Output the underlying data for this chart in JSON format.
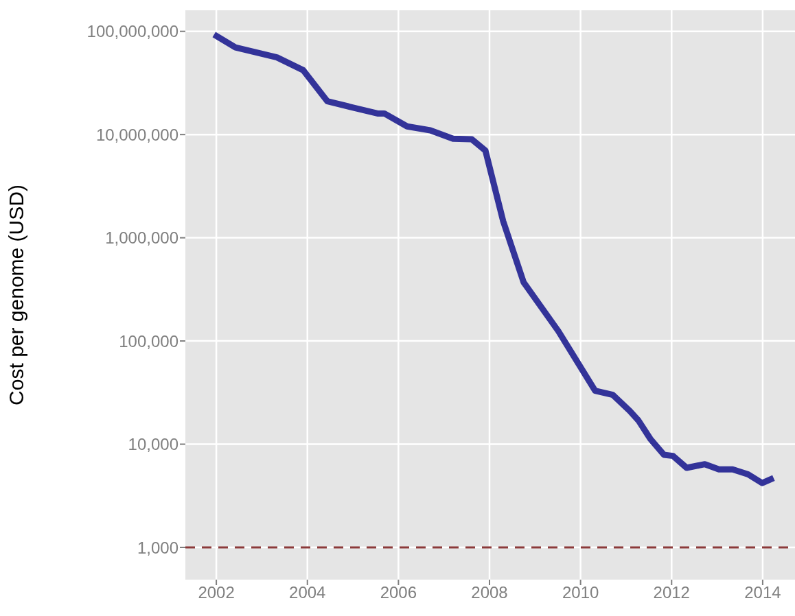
{
  "chart_data": {
    "type": "line",
    "ylabel": "Cost per genome (USD)",
    "x": [
      2001.95,
      2002.42,
      2003.33,
      2003.91,
      2004.44,
      2005.54,
      2005.69,
      2006.19,
      2006.7,
      2007.2,
      2007.61,
      2007.91,
      2008.3,
      2008.75,
      2009.51,
      2010.32,
      2010.71,
      2011.08,
      2011.27,
      2011.53,
      2011.83,
      2012.03,
      2012.33,
      2012.73,
      2013.04,
      2013.34,
      2013.68,
      2013.99,
      2014.24
    ],
    "series": [
      {
        "color": "#333399",
        "values": [
          93000000,
          70000000,
          56000000,
          42000000,
          21000000,
          16000000,
          16000000,
          12000000,
          11000000,
          9100000,
          9000000,
          7000000,
          1450000,
          370000,
          125000,
          33000,
          30000,
          21000,
          17000,
          11300,
          7900,
          7700,
          5900,
          6400,
          5700,
          5700,
          5100,
          4200,
          4700
        ]
      }
    ],
    "xlim": [
      2001.32,
      2014.71
    ],
    "xticks": [
      2002,
      2004,
      2006,
      2008,
      2010,
      2012,
      2014
    ],
    "ylim": [
      487,
      160000000
    ],
    "yticks": [
      {
        "value": 1000,
        "label": "1,000"
      },
      {
        "value": 10000,
        "label": "10,000"
      },
      {
        "value": 100000,
        "label": "100,000"
      },
      {
        "value": 1000000,
        "label": "1,000,000"
      },
      {
        "value": 10000000,
        "label": "10,000,000"
      },
      {
        "value": 100000000,
        "label": "100,000,000"
      }
    ],
    "log": "y",
    "grid": true,
    "line_style": "solid",
    "marker": "none",
    "ref_lines": [
      {
        "axis": "y",
        "value": 1000,
        "color": "#8b3a3a",
        "line_style": "dashed"
      }
    ]
  }
}
